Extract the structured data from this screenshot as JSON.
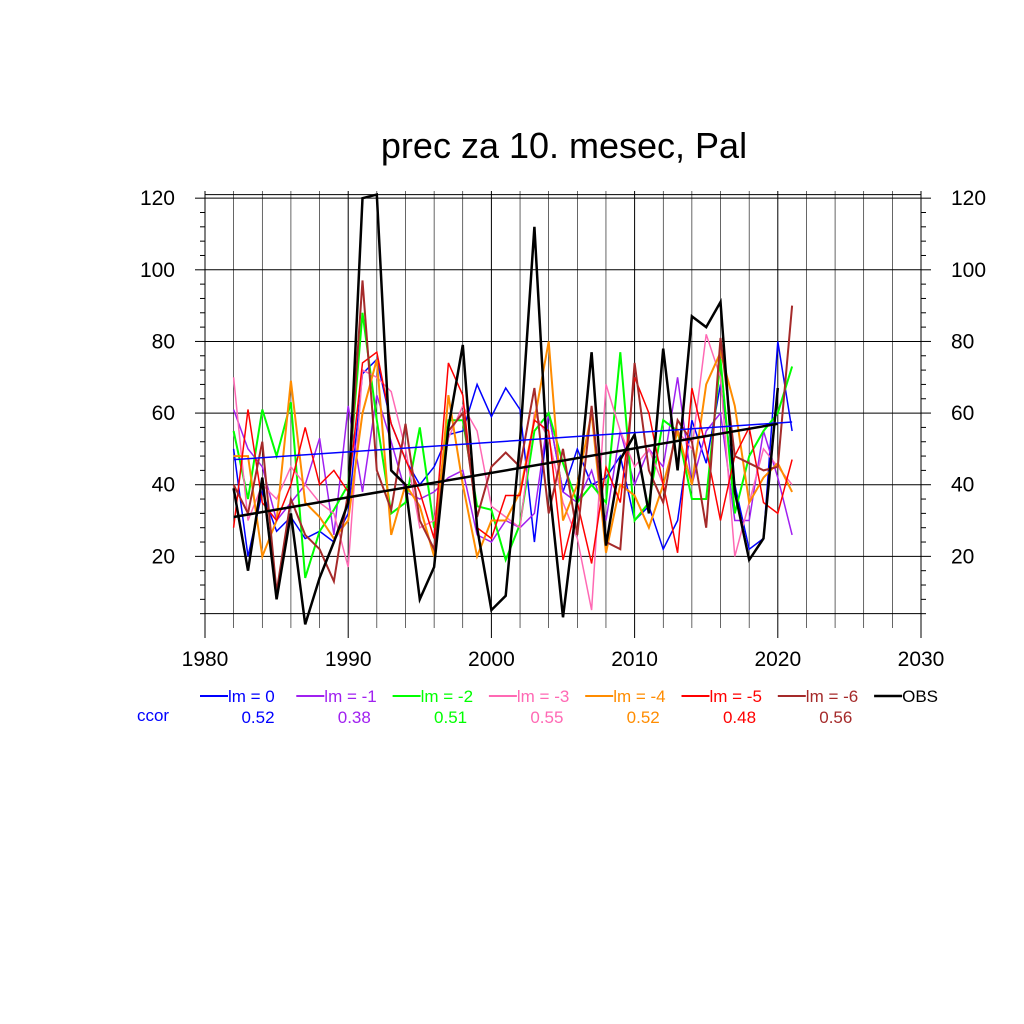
{
  "chart_data": {
    "type": "line",
    "title": "prec za 10. mesec, Pal",
    "xlabel": "",
    "ylabel": "",
    "xlim": [
      1980,
      2030
    ],
    "ylim": [
      0,
      122
    ],
    "x_ticks": [
      1980,
      1990,
      2000,
      2010,
      2020,
      2030
    ],
    "y_ticks": [
      20,
      40,
      60,
      80,
      100,
      120
    ],
    "grid": true,
    "legend_position": "bottom",
    "ccor_label": "ccor",
    "x": [
      1982,
      1983,
      1984,
      1985,
      1986,
      1987,
      1988,
      1989,
      1990,
      1991,
      1992,
      1993,
      1994,
      1995,
      1996,
      1997,
      1998,
      1999,
      2000,
      2001,
      2002,
      2003,
      2004,
      2005,
      2006,
      2007,
      2008,
      2009,
      2010,
      2011,
      2012,
      2013,
      2014,
      2015,
      2016,
      2017,
      2018,
      2019,
      2020,
      2021
    ],
    "series": [
      {
        "name": "lm = 0",
        "color": "#0000ff",
        "width": 1.5,
        "ccor": "0.52",
        "values": [
          50,
          20,
          38,
          27,
          31,
          25,
          27,
          24,
          32,
          71,
          75,
          57,
          47,
          40,
          45,
          54,
          55,
          68,
          59,
          67,
          61,
          24,
          60,
          38,
          50,
          40,
          42,
          48,
          30,
          34,
          22,
          30,
          58,
          46,
          68,
          40,
          22,
          25,
          80,
          55
        ]
      },
      {
        "name": "lm = -1",
        "color": "#a020f0",
        "width": 1.5,
        "ccor": "0.38",
        "values": [
          61,
          50,
          45,
          30,
          35,
          40,
          53,
          26,
          62,
          38,
          65,
          52,
          38,
          36,
          38,
          42,
          44,
          26,
          24,
          30,
          28,
          32,
          60,
          38,
          35,
          44,
          30,
          55,
          40,
          50,
          45,
          70,
          40,
          55,
          60,
          30,
          30,
          55,
          42,
          26
        ]
      },
      {
        "name": "lm = -2",
        "color": "#00ff00",
        "width": 2,
        "ccor": "0.51",
        "values": [
          55,
          36,
          61,
          48,
          63,
          14,
          27,
          33,
          40,
          88,
          58,
          32,
          35,
          56,
          28,
          58,
          58,
          34,
          33,
          19,
          29,
          55,
          60,
          46,
          35,
          40,
          35,
          77,
          30,
          35,
          58,
          55,
          36,
          36,
          75,
          32,
          48,
          55,
          60,
          73
        ]
      },
      {
        "name": "lm = -3",
        "color": "#ff69b4",
        "width": 1.5,
        "ccor": "0.55",
        "values": [
          70,
          30,
          40,
          36,
          45,
          40,
          35,
          32,
          17,
          72,
          70,
          66,
          50,
          28,
          30,
          53,
          62,
          55,
          34,
          31,
          28,
          60,
          53,
          35,
          25,
          5,
          68,
          55,
          45,
          50,
          40,
          55,
          50,
          82,
          70,
          20,
          35,
          50,
          45,
          40
        ]
      },
      {
        "name": "lm = -4",
        "color": "#ff8c00",
        "width": 2,
        "ccor": "0.52",
        "values": [
          48,
          48,
          20,
          30,
          69,
          35,
          31,
          25,
          30,
          60,
          75,
          26,
          40,
          34,
          20,
          65,
          40,
          20,
          30,
          30,
          38,
          58,
          80,
          30,
          40,
          60,
          21,
          40,
          37,
          28,
          40,
          55,
          40,
          68,
          77,
          62,
          35,
          42,
          46,
          38
        ]
      },
      {
        "name": "lm = -5",
        "color": "#ff0000",
        "width": 1.5,
        "ccor": "0.48",
        "values": [
          28,
          61,
          35,
          30,
          40,
          56,
          40,
          44,
          38,
          74,
          77,
          57,
          47,
          38,
          25,
          74,
          65,
          28,
          25,
          37,
          37,
          58,
          55,
          19,
          35,
          18,
          45,
          35,
          70,
          60,
          40,
          21,
          67,
          50,
          30,
          48,
          56,
          35,
          32,
          47
        ]
      },
      {
        "name": "lm = -6",
        "color": "#a52a2a",
        "width": 2,
        "ccor": "0.56",
        "values": [
          40,
          32,
          52,
          10,
          36,
          26,
          22,
          13,
          38,
          97,
          44,
          33,
          57,
          30,
          22,
          55,
          60,
          31,
          45,
          49,
          45,
          67,
          32,
          50,
          26,
          62,
          24,
          22,
          74,
          44,
          35,
          58,
          52,
          28,
          81,
          48,
          46,
          44,
          45,
          90
        ]
      },
      {
        "name": "OBS",
        "color": "#000000",
        "width": 2.5,
        "ccor": "",
        "values": [
          39,
          16,
          42,
          8,
          32,
          1,
          14,
          24,
          35,
          120,
          121,
          44,
          40,
          8,
          17,
          56,
          79,
          28,
          5,
          9,
          52,
          112,
          41,
          3,
          36,
          77,
          23,
          47,
          54,
          32,
          78,
          44,
          87,
          84,
          91,
          38,
          19,
          25,
          67,
          null
        ]
      }
    ],
    "trend_lines": [
      {
        "of": "lm = 0",
        "color": "#0000ff",
        "width": 1.5,
        "x": [
          1982,
          2021
        ],
        "y": [
          47,
          57.5
        ]
      },
      {
        "of": "OBS",
        "color": "#000000",
        "width": 2.5,
        "x": [
          1982,
          2020
        ],
        "y": [
          31,
          57
        ]
      }
    ]
  }
}
